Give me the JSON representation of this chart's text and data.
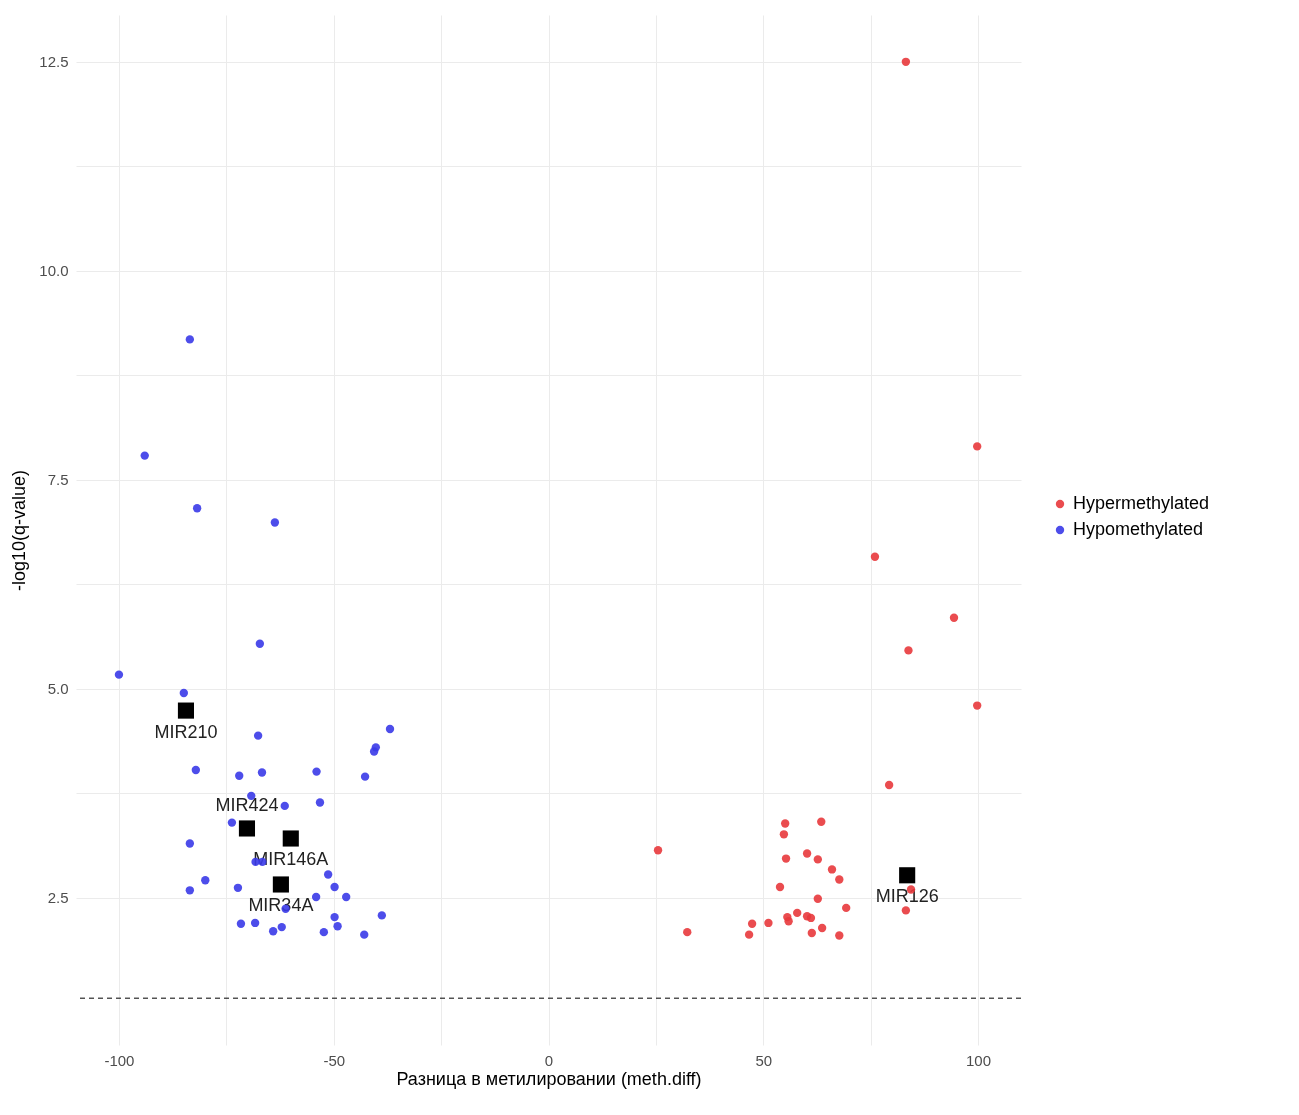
{
  "chart_data": {
    "type": "scatter",
    "xlabel": "Разница в метилировании (meth.diff)",
    "ylabel": "-log10(q-value)",
    "xlim": [
      -110,
      110
    ],
    "ylim": [
      0.74,
      13.06
    ],
    "xticks": [
      -100,
      {
        "value": -75,
        "label": null
      },
      -50,
      {
        "value": -25,
        "label": null
      },
      0,
      {
        "value": 25,
        "label": null
      },
      50,
      {
        "value": 75,
        "label": null
      },
      100
    ],
    "yticks": [
      2.5,
      {
        "value": 3.75,
        "label": null
      },
      {
        "value": 5,
        "label": "5.0"
      },
      {
        "value": 6.25,
        "label": null
      },
      7.5,
      {
        "value": 8.75,
        "label": null
      },
      {
        "value": 10,
        "label": "10.0"
      },
      {
        "value": 11.25,
        "label": null
      },
      12.5
    ],
    "grid": true,
    "legend": "right",
    "marker": "circle",
    "series": [
      {
        "name": "Hypermethylated",
        "color": "#e8383c",
        "x": [
          83.2,
          99.8,
          76.0,
          94.4,
          83.8,
          99.8,
          79.3,
          55.1,
          63.5,
          54.8,
          25.5,
          55.3,
          60.2,
          62.7,
          66.0,
          67.7,
          53.9,
          62.7,
          69.3,
          83.2,
          84.4,
          55.6,
          55.9,
          57.9,
          60.2,
          61.1,
          51.2,
          47.4,
          46.7,
          32.3,
          63.7,
          61.3,
          67.7
        ],
        "values": [
          12.5,
          7.9,
          6.58,
          5.85,
          5.46,
          4.8,
          3.85,
          3.39,
          3.41,
          3.26,
          3.07,
          2.97,
          3.03,
          2.96,
          2.84,
          2.72,
          2.63,
          2.49,
          2.38,
          2.35,
          2.6,
          2.27,
          2.22,
          2.32,
          2.28,
          2.26,
          2.2,
          2.19,
          2.06,
          2.09,
          2.14,
          2.08,
          2.05
        ]
      },
      {
        "name": "Hypomethylated",
        "color": "#3a3ae8",
        "x": [
          -100,
          -94,
          -83.5,
          -81.8,
          -63.7,
          -67.2,
          -84.9,
          -82.1,
          -67.6,
          -36.9,
          -40.2,
          -40.6,
          -42.7,
          -72,
          -66.7,
          -54,
          -53.2,
          -69.2,
          -61.4,
          -73.7,
          -83.5,
          -68.2,
          -66.6,
          -79.9,
          -83.5,
          -72.3,
          -51.3,
          -49.8,
          -61.2,
          -54.1,
          -47.1,
          -38.8,
          -71.6,
          -68.3,
          -49.8,
          -49.1,
          -64.1,
          -62.1,
          -52.3,
          -42.9
        ],
        "values": [
          5.17,
          7.79,
          9.18,
          7.16,
          6.99,
          5.54,
          4.95,
          4.03,
          4.44,
          4.52,
          4.3,
          4.25,
          3.95,
          3.96,
          4.0,
          4.01,
          3.64,
          3.72,
          3.6,
          3.4,
          3.15,
          2.93,
          2.93,
          2.71,
          2.59,
          2.62,
          2.78,
          2.63,
          2.37,
          2.51,
          2.51,
          2.29,
          2.19,
          2.2,
          2.27,
          2.16,
          2.1,
          2.15,
          2.09,
          2.06
        ]
      },
      {
        "color": "#000000",
        "marker": "square",
        "x": [
          -84.4,
          -70.2,
          -60.0,
          -62.3,
          83.5
        ],
        "values": [
          4.74,
          3.33,
          3.21,
          2.66,
          2.77
        ]
      }
    ],
    "annotations": [
      {
        "text": "MIR210",
        "x": -84.4,
        "y": 4.74
      },
      {
        "text": "MIR424",
        "x": -70.2,
        "y": 3.33
      },
      {
        "text": "MIR146A",
        "x": -60.0,
        "y": 3.21
      },
      {
        "text": "MIR34A",
        "x": -62.3,
        "y": 2.66
      },
      {
        "text": "MIR126",
        "x": 83.5,
        "y": 2.77
      }
    ],
    "ref_lines": [
      {
        "axis": "y",
        "value": 1.3,
        "line_style": "dashed",
        "color": "#000000"
      }
    ]
  }
}
